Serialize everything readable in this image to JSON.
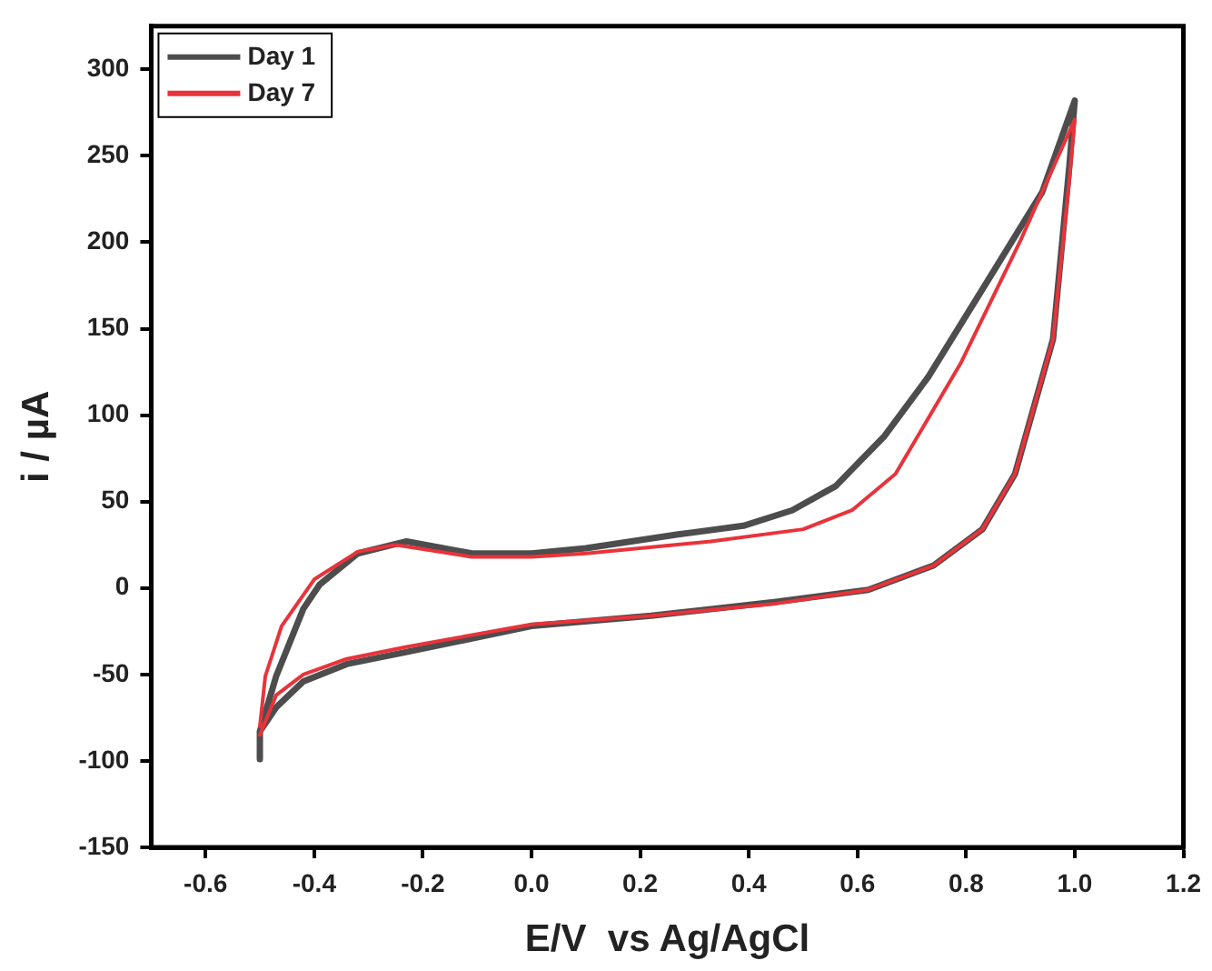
{
  "chart_data": {
    "type": "line",
    "xlabel": "E/V  vs Ag/AgCl",
    "ylabel": "i / µA",
    "xlim": [
      -0.7,
      1.2
    ],
    "ylim": [
      -150,
      325
    ],
    "xticks": [
      -0.6,
      -0.4,
      -0.2,
      {
        "value": 0,
        "label": "0.0"
      },
      0.2,
      0.4,
      0.6,
      0.8,
      {
        "value": 1,
        "label": "1.0"
      },
      1.2
    ],
    "yticks": [
      -150,
      -100,
      -50,
      0,
      50,
      100,
      150,
      200,
      250,
      300
    ],
    "grid": false,
    "legend": "top left",
    "marker": "none",
    "line_style": "solid",
    "series": [
      {
        "name": "Day 1",
        "color": "#4d4d4d",
        "x": [
          -0.5,
          -0.47,
          -0.42,
          -0.39,
          -0.32,
          -0.23,
          -0.11,
          0,
          0.1,
          0.27,
          0.39,
          0.48,
          0.56,
          0.65,
          0.73,
          0.85,
          0.94,
          1.0,
          0.99,
          0.96,
          0.89,
          0.83,
          0.74,
          0.62,
          0.45,
          0.22,
          0,
          -0.23,
          -0.34,
          -0.42,
          -0.47,
          -0.5,
          -0.5
        ],
        "values": [
          -83,
          -51,
          -12,
          2,
          20,
          27,
          20,
          20,
          23,
          31,
          36,
          45,
          59,
          88,
          122,
          183,
          229,
          282,
          244,
          144,
          66,
          34,
          13,
          -1,
          -8,
          -16,
          -22,
          -37,
          -44,
          -54,
          -69,
          -83,
          -99
        ]
      },
      {
        "name": "Day 7",
        "color": "#e8333a",
        "x": [
          -0.5,
          -0.49,
          -0.46,
          -0.4,
          -0.32,
          -0.25,
          -0.11,
          0,
          0.1,
          0.33,
          0.5,
          0.59,
          0.67,
          0.79,
          0.9,
          1.0,
          0.99,
          0.96,
          0.89,
          0.83,
          0.74,
          0.62,
          0.45,
          0.22,
          0,
          -0.23,
          -0.34,
          -0.42,
          -0.47,
          -0.5
        ],
        "values": [
          -80,
          -51,
          -22,
          5,
          21,
          25,
          18,
          18,
          20,
          27,
          34,
          45,
          66,
          130,
          201,
          271,
          236,
          144,
          66,
          34,
          13,
          -1,
          -9,
          -16,
          -21,
          -34,
          -41,
          -50,
          -62,
          -85
        ]
      }
    ]
  }
}
